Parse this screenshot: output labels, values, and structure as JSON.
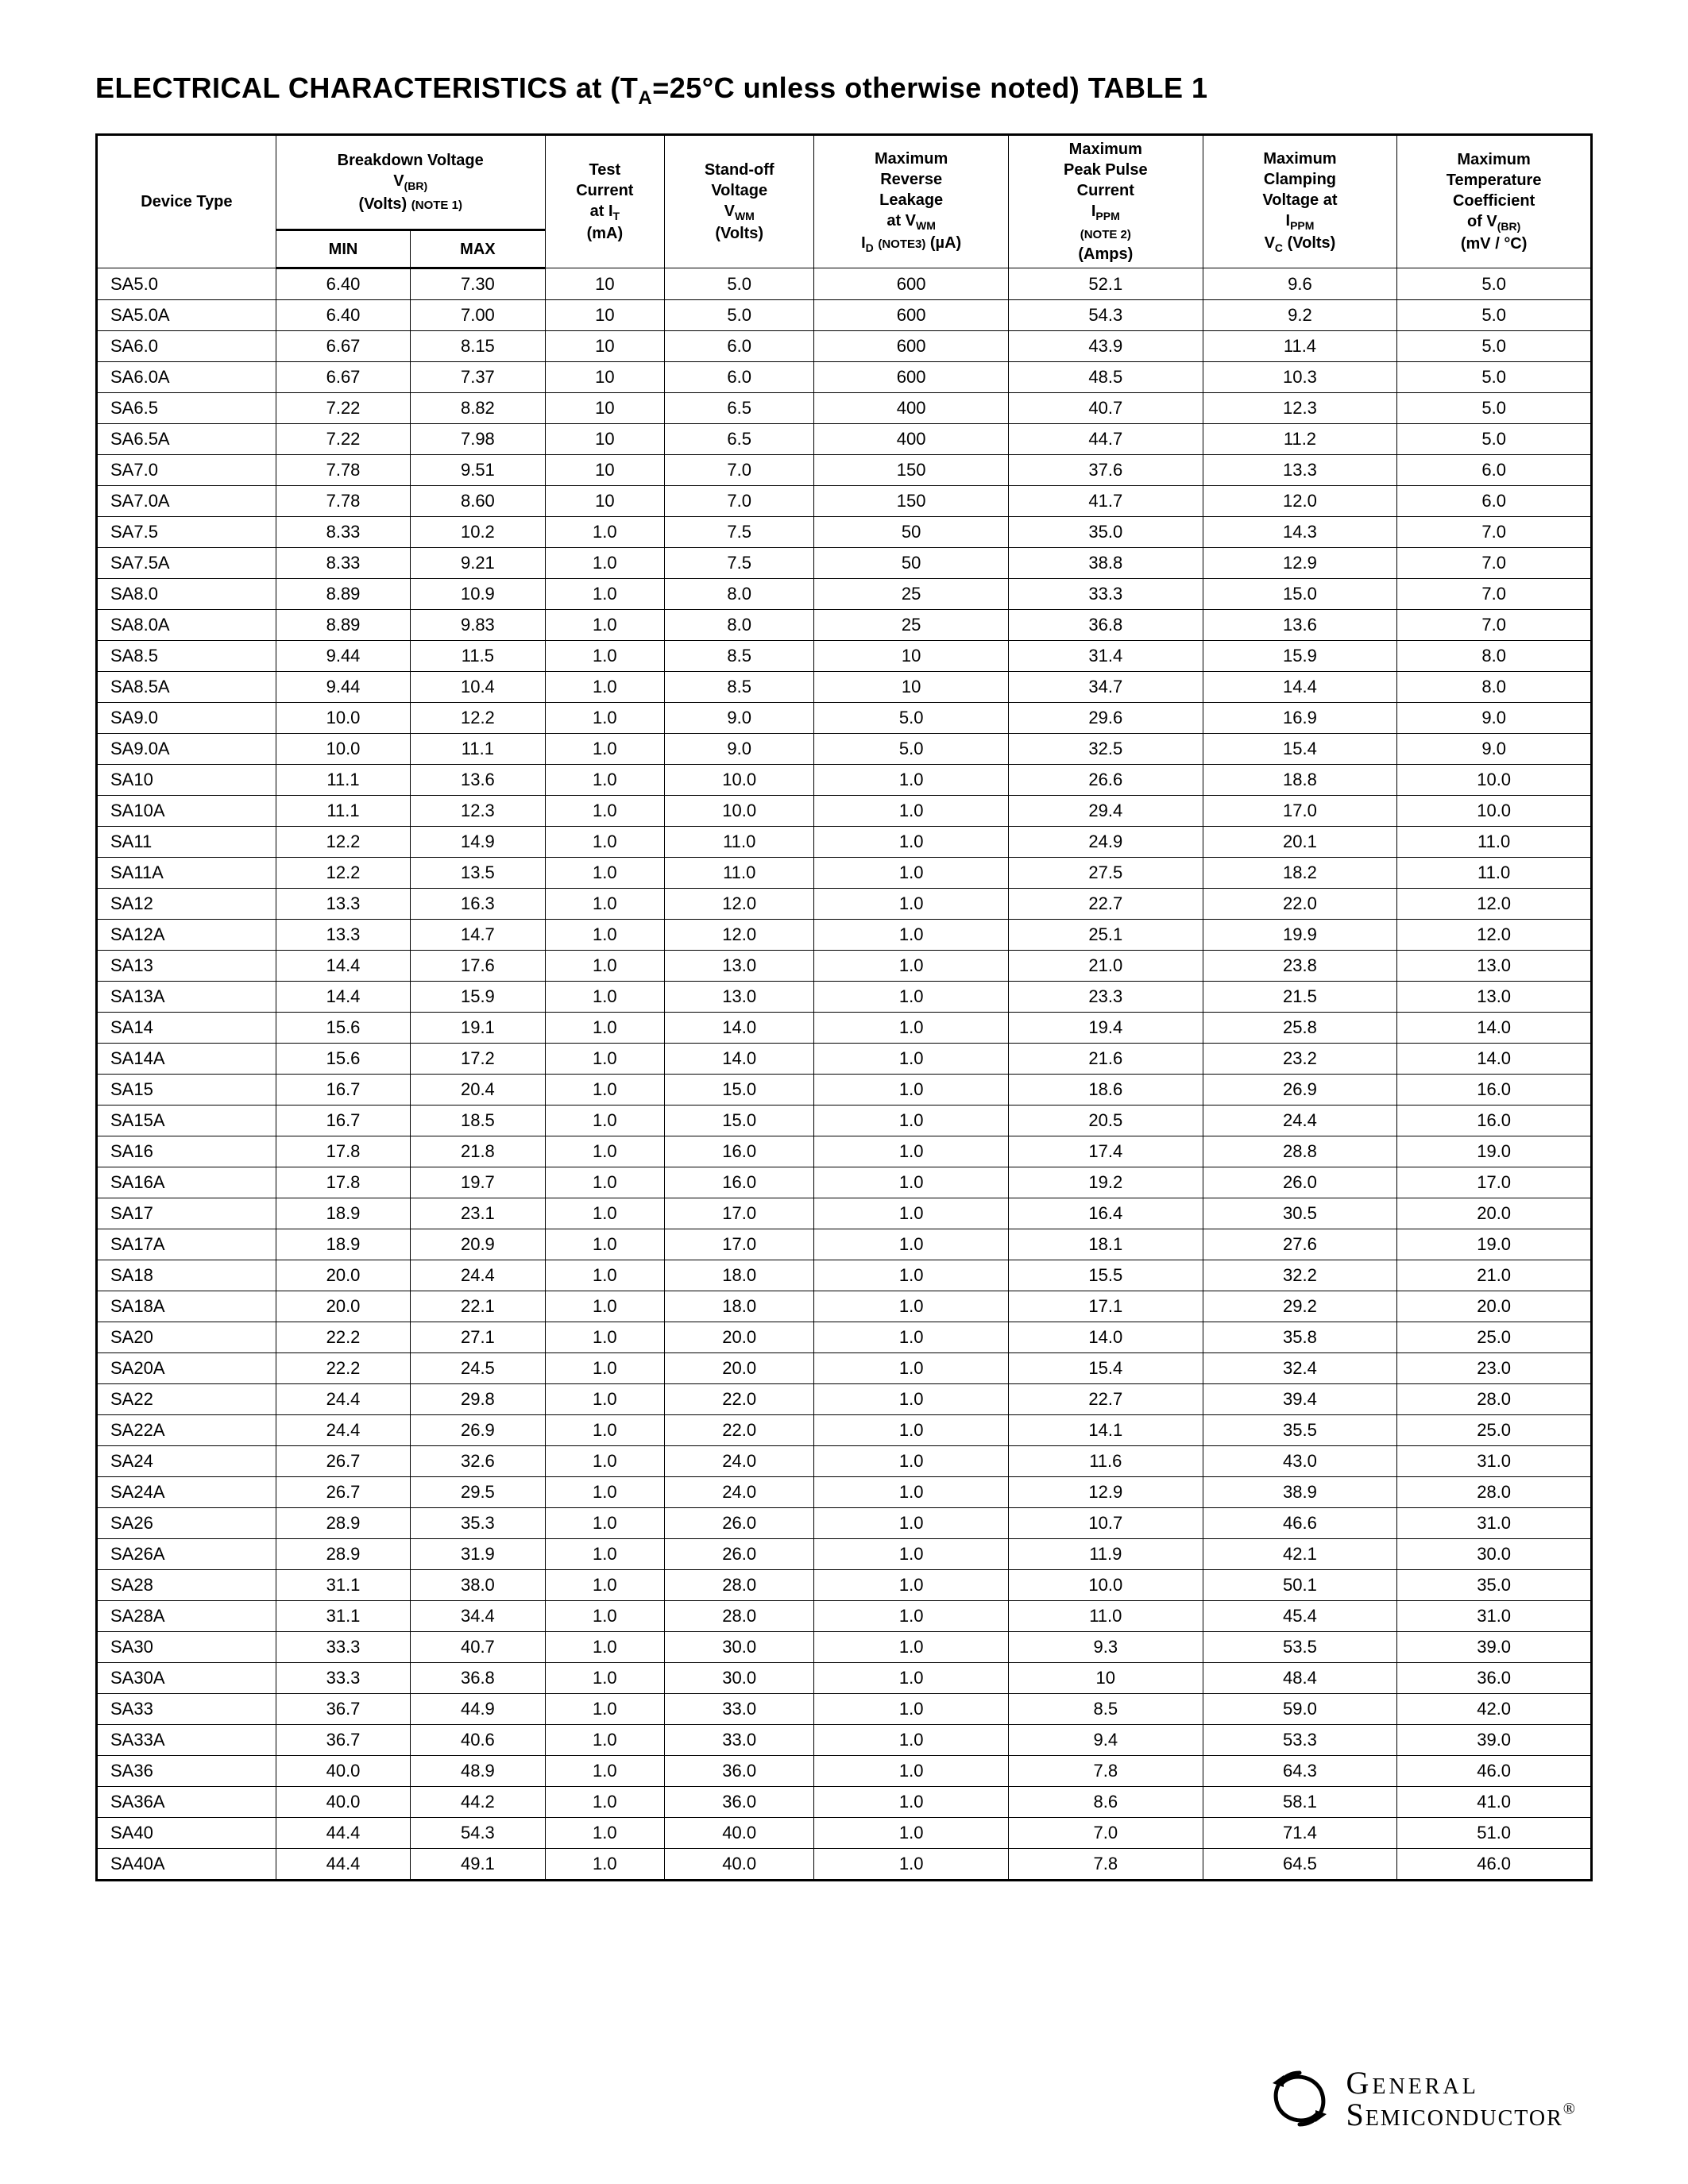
{
  "title_prefix": "ELECTRICAL CHARACTERISTICS at (T",
  "title_sub": "A",
  "title_suffix": "=25°C unless otherwise noted) TABLE 1",
  "headers": {
    "device": "Device Type",
    "breakdown_top": "Breakdown Voltage",
    "breakdown_sym": "V",
    "breakdown_sub": "(BR)",
    "breakdown_units": "(Volts)",
    "breakdown_note": "(NOTE 1)",
    "min": "MIN",
    "max": "MAX",
    "test_l1": "Test",
    "test_l2": "Current",
    "test_l3": "at I",
    "test_sub": "T",
    "test_units": "(mA)",
    "standoff_l1": "Stand-off",
    "standoff_l2": "Voltage",
    "standoff_sym": "V",
    "standoff_sub": "WM",
    "standoff_units": "(Volts)",
    "rev_l1": "Maximum",
    "rev_l2": "Reverse",
    "rev_l3": "Leakage",
    "rev_l4": "at V",
    "rev_sub1": "WM",
    "rev_sym": "I",
    "rev_sub2": "D",
    "rev_note": "(NOTE3)",
    "rev_units": "(µA)",
    "peak_l1": "Maximum",
    "peak_l2": "Peak Pulse",
    "peak_l3": "Current",
    "peak_sym": "I",
    "peak_sub": "PPM",
    "peak_note": "(NOTE 2)",
    "peak_units": "(Amps)",
    "clamp_l1": "Maximum",
    "clamp_l2": "Clamping",
    "clamp_l3": "Voltage at",
    "clamp_sym1": "I",
    "clamp_sub1": "PPM",
    "clamp_sym2": "V",
    "clamp_sub2": "C",
    "clamp_units": "(Volts)",
    "temp_l1": "Maximum",
    "temp_l2": "Temperature",
    "temp_l3": "Coefficient",
    "temp_l4": "of V",
    "temp_sub": "(BR)",
    "temp_units": "(mV / °C)"
  },
  "rows": [
    [
      "SA5.0",
      "6.40",
      "7.30",
      "10",
      "5.0",
      "600",
      "52.1",
      "9.6",
      "5.0"
    ],
    [
      "SA5.0A",
      "6.40",
      "7.00",
      "10",
      "5.0",
      "600",
      "54.3",
      "9.2",
      "5.0"
    ],
    [
      "SA6.0",
      "6.67",
      "8.15",
      "10",
      "6.0",
      "600",
      "43.9",
      "11.4",
      "5.0"
    ],
    [
      "SA6.0A",
      "6.67",
      "7.37",
      "10",
      "6.0",
      "600",
      "48.5",
      "10.3",
      "5.0"
    ],
    [
      "SA6.5",
      "7.22",
      "8.82",
      "10",
      "6.5",
      "400",
      "40.7",
      "12.3",
      "5.0"
    ],
    [
      "SA6.5A",
      "7.22",
      "7.98",
      "10",
      "6.5",
      "400",
      "44.7",
      "11.2",
      "5.0"
    ],
    [
      "SA7.0",
      "7.78",
      "9.51",
      "10",
      "7.0",
      "150",
      "37.6",
      "13.3",
      "6.0"
    ],
    [
      "SA7.0A",
      "7.78",
      "8.60",
      "10",
      "7.0",
      "150",
      "41.7",
      "12.0",
      "6.0"
    ],
    [
      "SA7.5",
      "8.33",
      "10.2",
      "1.0",
      "7.5",
      "50",
      "35.0",
      "14.3",
      "7.0"
    ],
    [
      "SA7.5A",
      "8.33",
      "9.21",
      "1.0",
      "7.5",
      "50",
      "38.8",
      "12.9",
      "7.0"
    ],
    [
      "SA8.0",
      "8.89",
      "10.9",
      "1.0",
      "8.0",
      "25",
      "33.3",
      "15.0",
      "7.0"
    ],
    [
      "SA8.0A",
      "8.89",
      "9.83",
      "1.0",
      "8.0",
      "25",
      "36.8",
      "13.6",
      "7.0"
    ],
    [
      "SA8.5",
      "9.44",
      "11.5",
      "1.0",
      "8.5",
      "10",
      "31.4",
      "15.9",
      "8.0"
    ],
    [
      "SA8.5A",
      "9.44",
      "10.4",
      "1.0",
      "8.5",
      "10",
      "34.7",
      "14.4",
      "8.0"
    ],
    [
      "SA9.0",
      "10.0",
      "12.2",
      "1.0",
      "9.0",
      "5.0",
      "29.6",
      "16.9",
      "9.0"
    ],
    [
      "SA9.0A",
      "10.0",
      "11.1",
      "1.0",
      "9.0",
      "5.0",
      "32.5",
      "15.4",
      "9.0"
    ],
    [
      "SA10",
      "11.1",
      "13.6",
      "1.0",
      "10.0",
      "1.0",
      "26.6",
      "18.8",
      "10.0"
    ],
    [
      "SA10A",
      "11.1",
      "12.3",
      "1.0",
      "10.0",
      "1.0",
      "29.4",
      "17.0",
      "10.0"
    ],
    [
      "SA11",
      "12.2",
      "14.9",
      "1.0",
      "11.0",
      "1.0",
      "24.9",
      "20.1",
      "11.0"
    ],
    [
      "SA11A",
      "12.2",
      "13.5",
      "1.0",
      "11.0",
      "1.0",
      "27.5",
      "18.2",
      "11.0"
    ],
    [
      "SA12",
      "13.3",
      "16.3",
      "1.0",
      "12.0",
      "1.0",
      "22.7",
      "22.0",
      "12.0"
    ],
    [
      "SA12A",
      "13.3",
      "14.7",
      "1.0",
      "12.0",
      "1.0",
      "25.1",
      "19.9",
      "12.0"
    ],
    [
      "SA13",
      "14.4",
      "17.6",
      "1.0",
      "13.0",
      "1.0",
      "21.0",
      "23.8",
      "13.0"
    ],
    [
      "SA13A",
      "14.4",
      "15.9",
      "1.0",
      "13.0",
      "1.0",
      "23.3",
      "21.5",
      "13.0"
    ],
    [
      "SA14",
      "15.6",
      "19.1",
      "1.0",
      "14.0",
      "1.0",
      "19.4",
      "25.8",
      "14.0"
    ],
    [
      "SA14A",
      "15.6",
      "17.2",
      "1.0",
      "14.0",
      "1.0",
      "21.6",
      "23.2",
      "14.0"
    ],
    [
      "SA15",
      "16.7",
      "20.4",
      "1.0",
      "15.0",
      "1.0",
      "18.6",
      "26.9",
      "16.0"
    ],
    [
      "SA15A",
      "16.7",
      "18.5",
      "1.0",
      "15.0",
      "1.0",
      "20.5",
      "24.4",
      "16.0"
    ],
    [
      "SA16",
      "17.8",
      "21.8",
      "1.0",
      "16.0",
      "1.0",
      "17.4",
      "28.8",
      "19.0"
    ],
    [
      "SA16A",
      "17.8",
      "19.7",
      "1.0",
      "16.0",
      "1.0",
      "19.2",
      "26.0",
      "17.0"
    ],
    [
      "SA17",
      "18.9",
      "23.1",
      "1.0",
      "17.0",
      "1.0",
      "16.4",
      "30.5",
      "20.0"
    ],
    [
      "SA17A",
      "18.9",
      "20.9",
      "1.0",
      "17.0",
      "1.0",
      "18.1",
      "27.6",
      "19.0"
    ],
    [
      "SA18",
      "20.0",
      "24.4",
      "1.0",
      "18.0",
      "1.0",
      "15.5",
      "32.2",
      "21.0"
    ],
    [
      "SA18A",
      "20.0",
      "22.1",
      "1.0",
      "18.0",
      "1.0",
      "17.1",
      "29.2",
      "20.0"
    ],
    [
      "SA20",
      "22.2",
      "27.1",
      "1.0",
      "20.0",
      "1.0",
      "14.0",
      "35.8",
      "25.0"
    ],
    [
      "SA20A",
      "22.2",
      "24.5",
      "1.0",
      "20.0",
      "1.0",
      "15.4",
      "32.4",
      "23.0"
    ],
    [
      "SA22",
      "24.4",
      "29.8",
      "1.0",
      "22.0",
      "1.0",
      "22.7",
      "39.4",
      "28.0"
    ],
    [
      "SA22A",
      "24.4",
      "26.9",
      "1.0",
      "22.0",
      "1.0",
      "14.1",
      "35.5",
      "25.0"
    ],
    [
      "SA24",
      "26.7",
      "32.6",
      "1.0",
      "24.0",
      "1.0",
      "11.6",
      "43.0",
      "31.0"
    ],
    [
      "SA24A",
      "26.7",
      "29.5",
      "1.0",
      "24.0",
      "1.0",
      "12.9",
      "38.9",
      "28.0"
    ],
    [
      "SA26",
      "28.9",
      "35.3",
      "1.0",
      "26.0",
      "1.0",
      "10.7",
      "46.6",
      "31.0"
    ],
    [
      "SA26A",
      "28.9",
      "31.9",
      "1.0",
      "26.0",
      "1.0",
      "11.9",
      "42.1",
      "30.0"
    ],
    [
      "SA28",
      "31.1",
      "38.0",
      "1.0",
      "28.0",
      "1.0",
      "10.0",
      "50.1",
      "35.0"
    ],
    [
      "SA28A",
      "31.1",
      "34.4",
      "1.0",
      "28.0",
      "1.0",
      "11.0",
      "45.4",
      "31.0"
    ],
    [
      "SA30",
      "33.3",
      "40.7",
      "1.0",
      "30.0",
      "1.0",
      "9.3",
      "53.5",
      "39.0"
    ],
    [
      "SA30A",
      "33.3",
      "36.8",
      "1.0",
      "30.0",
      "1.0",
      "10",
      "48.4",
      "36.0"
    ],
    [
      "SA33",
      "36.7",
      "44.9",
      "1.0",
      "33.0",
      "1.0",
      "8.5",
      "59.0",
      "42.0"
    ],
    [
      "SA33A",
      "36.7",
      "40.6",
      "1.0",
      "33.0",
      "1.0",
      "9.4",
      "53.3",
      "39.0"
    ],
    [
      "SA36",
      "40.0",
      "48.9",
      "1.0",
      "36.0",
      "1.0",
      "7.8",
      "64.3",
      "46.0"
    ],
    [
      "SA36A",
      "40.0",
      "44.2",
      "1.0",
      "36.0",
      "1.0",
      "8.6",
      "58.1",
      "41.0"
    ],
    [
      "SA40",
      "44.4",
      "54.3",
      "1.0",
      "40.0",
      "1.0",
      "7.0",
      "71.4",
      "51.0"
    ],
    [
      "SA40A",
      "44.4",
      "49.1",
      "1.0",
      "40.0",
      "1.0",
      "7.8",
      "64.5",
      "46.0"
    ]
  ],
  "logo": {
    "line1": "General",
    "line2": "Semiconductor"
  },
  "style": {
    "page_bg": "#ffffff",
    "text_color": "#000000",
    "border_color": "#000000",
    "title_fontsize": 36,
    "header_fontsize": 20,
    "body_fontsize": 22,
    "note_fontsize": 15,
    "outer_border_width": 3,
    "inner_border_width": 1
  }
}
